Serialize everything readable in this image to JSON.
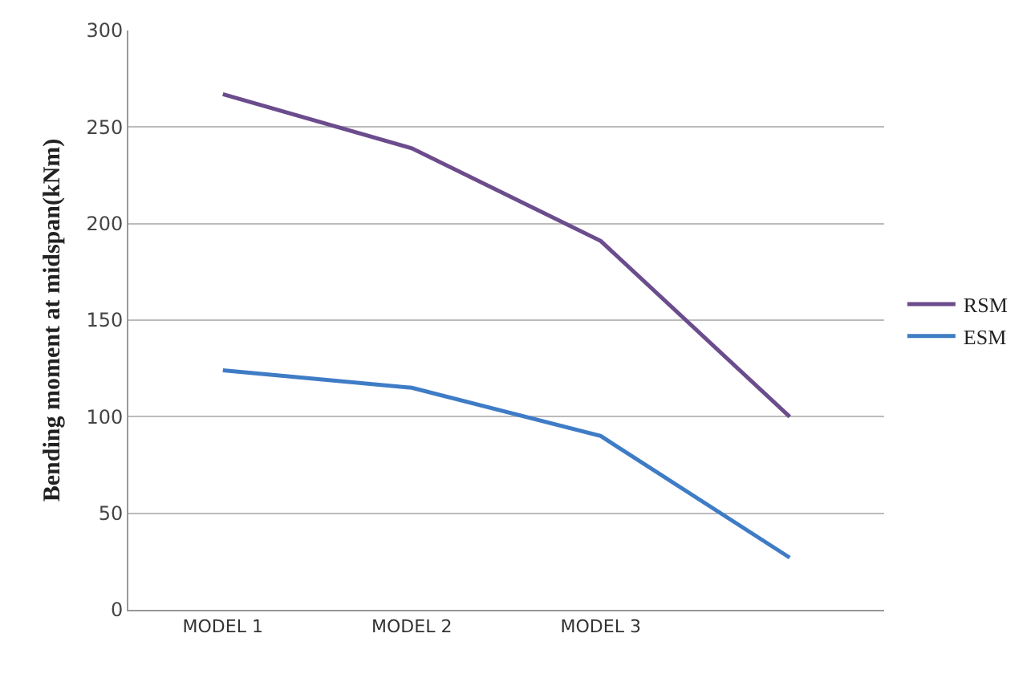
{
  "chart_data": {
    "type": "line",
    "ylabel": "Bending moment at midspan(kNm)",
    "categories": [
      "MODEL 1",
      "MODEL 2",
      "MODEL 3",
      null
    ],
    "ylim": [
      0,
      300
    ],
    "yticks": [
      0,
      50,
      100,
      150,
      200,
      250,
      300
    ],
    "grid": "y",
    "legend": "right",
    "marker": "none",
    "line_style": "solid",
    "series": [
      {
        "name": "RSM",
        "color": "#6b4c8c",
        "values": [
          267,
          239,
          191,
          100
        ]
      },
      {
        "name": "ESM",
        "color": "#3f7cc6",
        "values": [
          124,
          115,
          90,
          27
        ]
      }
    ]
  }
}
